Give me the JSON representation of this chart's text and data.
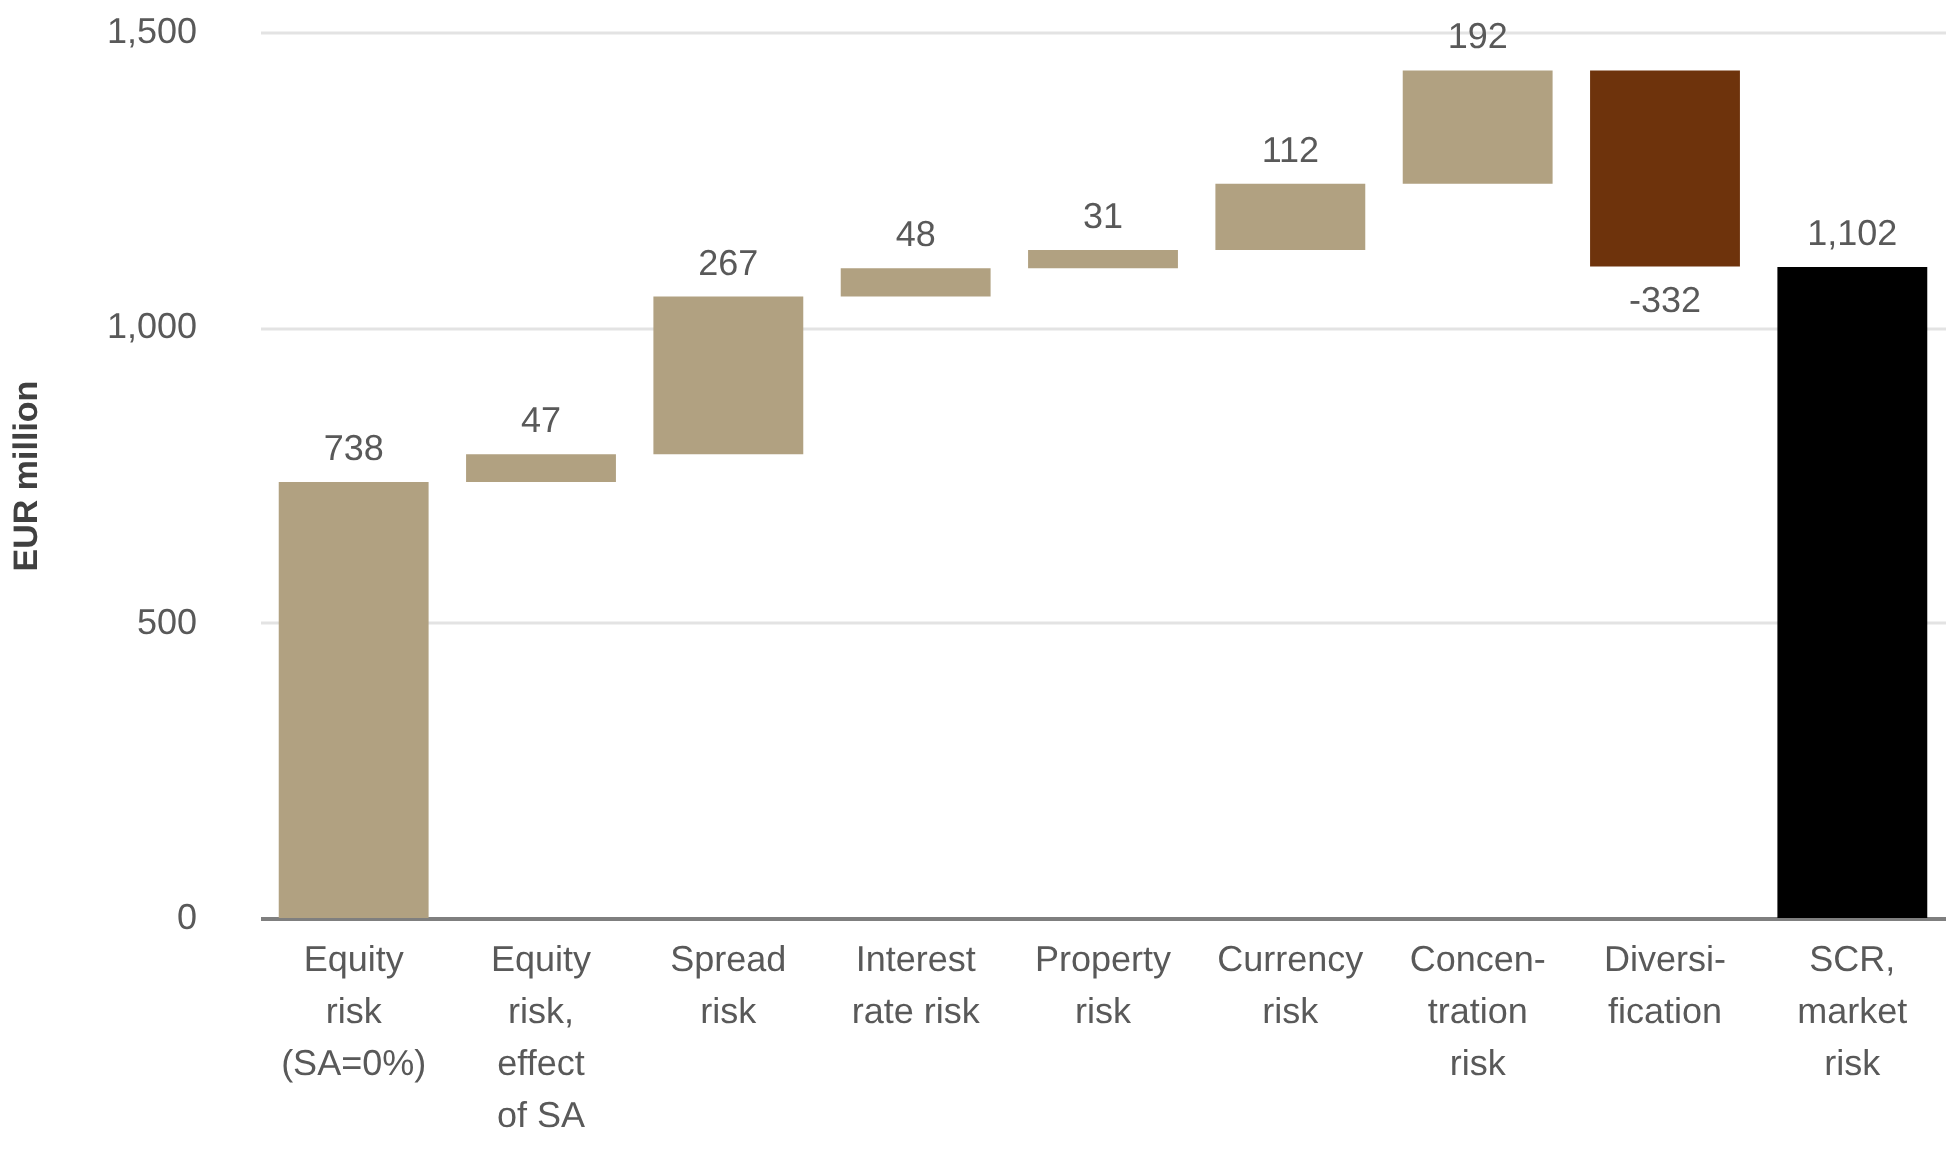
{
  "chart_data": {
    "type": "bar",
    "ylabel": "EUR million",
    "categories": [
      "Equity\nrisk\n(SA=0%)",
      "Equity\nrisk,\neffect\nof SA",
      "Spread\nrisk",
      "Interest\nrate risk",
      "Property\nrisk",
      "Currency\nrisk",
      "Concen-\ntration\nrisk",
      "Diversi-\nfication",
      "SCR,\nmarket\nrisk"
    ],
    "values": [
      738,
      47,
      267,
      48,
      31,
      112,
      192,
      -332,
      1102
    ],
    "base": [
      0,
      738,
      785,
      1052,
      1100,
      1131,
      1243,
      1435,
      0
    ],
    "colors": [
      "#b1a181",
      "#b1a181",
      "#b1a181",
      "#b1a181",
      "#b1a181",
      "#b1a181",
      "#b1a181",
      "#6e330c",
      "#000000"
    ],
    "value_labels": [
      "738",
      "47",
      "267",
      "48",
      "31",
      "112",
      "192",
      "-332",
      "1,102"
    ],
    "ylim": [
      0,
      1500
    ],
    "yticks": [
      0,
      500,
      {
        "value": 1000,
        "label": "1,000"
      },
      {
        "value": 1500,
        "label": "1,500"
      }
    ],
    "grid": "y"
  }
}
